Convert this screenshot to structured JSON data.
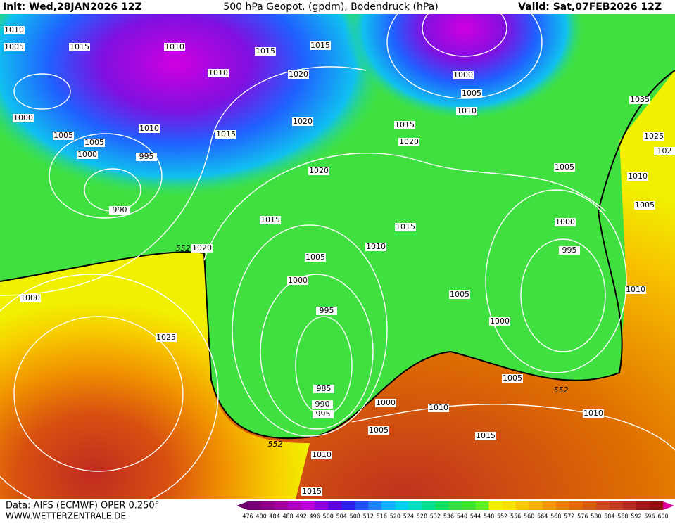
{
  "header": {
    "init": "Init: Wed,28JAN2026 12Z",
    "title": "500 hPa Geopot. (gpdm), Bodendruck (hPa)",
    "valid": "Valid: Sat,07FEB2026 12Z"
  },
  "isobar_labels": [
    "1010",
    "1005",
    "1015",
    "1010",
    "1015",
    "1015",
    "1010",
    "1020",
    "1000",
    "1005",
    "1010",
    "1035",
    "1000",
    "1020",
    "1015",
    "1010",
    "1005",
    "1015",
    "1025",
    "1005",
    "1020",
    "102",
    "1000",
    "995",
    "1005",
    "1020",
    "1010",
    "990",
    "1005",
    "1015",
    "1015",
    "1000",
    "1020",
    "1010",
    "995",
    "1005",
    "1000",
    "1010",
    "1000",
    "1005",
    "995",
    "1000",
    "1025",
    "1005",
    "985",
    "990",
    "1000",
    "995",
    "1010",
    "1010",
    "1005",
    "1015",
    "1010",
    "1015"
  ],
  "contour_552_labels": [
    "552",
    "552",
    "552"
  ],
  "legend": {
    "levels": [
      476,
      480,
      484,
      488,
      492,
      496,
      500,
      504,
      508,
      512,
      516,
      520,
      524,
      528,
      532,
      536,
      540,
      544,
      548,
      552,
      556,
      560,
      564,
      568,
      572,
      576,
      580,
      584,
      588,
      592,
      596,
      600
    ],
    "colors": [
      "#6a006a",
      "#7a007a",
      "#8c008c",
      "#a000a0",
      "#b400c0",
      "#c000e0",
      "#9000e0",
      "#6000e0",
      "#3020f0",
      "#2050ff",
      "#2080ff",
      "#10b0ff",
      "#00d0f0",
      "#00e0c0",
      "#00e090",
      "#10e060",
      "#30e040",
      "#40e030",
      "#60f020",
      "#f0f000",
      "#f8e000",
      "#f8c800",
      "#f8b000",
      "#f09800",
      "#e88000",
      "#e06c00",
      "#d85a10",
      "#d04820",
      "#c83a20",
      "#b82a20",
      "#a01818",
      "#901010",
      "#e000a0"
    ]
  },
  "footer": {
    "source": "Data: AIFS (ECMWF) OPER 0.250°",
    "site": "WWW.WETTERZENTRALE.DE"
  }
}
